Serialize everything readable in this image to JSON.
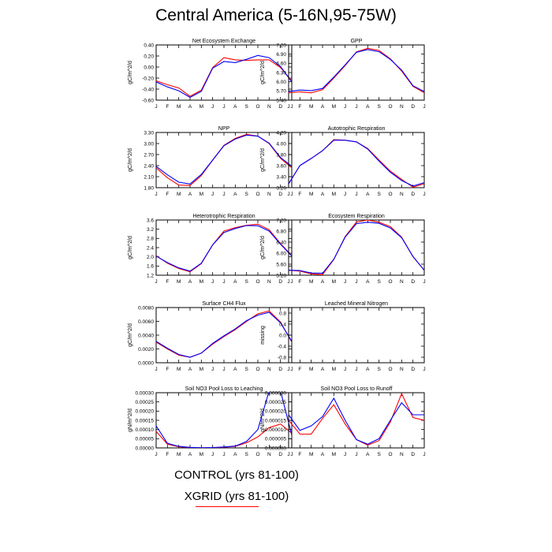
{
  "title": "Central America (5-16N,95-75W)",
  "legend": {
    "control_label": "CONTROL (yrs 81-100)",
    "xgrid_label": "XGRID (yrs 81-100)"
  },
  "colors": {
    "control": "#0000ff",
    "xgrid": "#ff0000"
  },
  "chart_data": [
    {
      "type": "line",
      "title": "Net Ecosystem Exchange",
      "ylabel": "gC/m^2/d",
      "ylim": [
        -0.6,
        0.4
      ],
      "yticks": [
        "0.40",
        "0.20",
        "0.00",
        "-0.20",
        "-0.40",
        "-0.60"
      ],
      "x": [
        "J",
        "F",
        "M",
        "A",
        "M",
        "J",
        "J",
        "A",
        "S",
        "O",
        "N",
        "D",
        "J"
      ],
      "series": [
        {
          "name": "CONTROL",
          "values": [
            -0.27,
            -0.36,
            -0.43,
            -0.55,
            -0.44,
            -0.02,
            0.1,
            0.08,
            0.14,
            0.21,
            0.17,
            0.01,
            -0.27
          ]
        },
        {
          "name": "XGRID",
          "values": [
            -0.25,
            -0.32,
            -0.38,
            -0.53,
            -0.42,
            -0.01,
            0.17,
            0.13,
            0.12,
            0.13,
            0.13,
            -0.01,
            -0.25
          ]
        }
      ]
    },
    {
      "type": "line",
      "title": "GPP",
      "ylabel": "gC/m^2/d",
      "ylim": [
        5.4,
        7.2
      ],
      "yticks": [
        "7.20",
        "6.90",
        "6.60",
        "6.30",
        "6.00",
        "5.70",
        "5.40"
      ],
      "x": [
        "J",
        "F",
        "M",
        "A",
        "M",
        "J",
        "J",
        "A",
        "S",
        "O",
        "N",
        "D",
        "J"
      ],
      "series": [
        {
          "name": "CONTROL",
          "values": [
            5.68,
            5.73,
            5.71,
            5.78,
            6.15,
            6.55,
            6.96,
            7.05,
            6.98,
            6.73,
            6.38,
            5.87,
            5.68
          ]
        },
        {
          "name": "XGRID",
          "values": [
            5.64,
            5.67,
            5.64,
            5.74,
            6.12,
            6.53,
            6.97,
            7.09,
            7.02,
            6.75,
            6.35,
            5.85,
            5.64
          ]
        }
      ]
    },
    {
      "type": "line",
      "title": "NPP",
      "ylabel": "gC/m^2/d",
      "ylim": [
        1.8,
        3.3
      ],
      "yticks": [
        "3.30",
        "3.00",
        "2.70",
        "2.40",
        "2.10",
        "1.80"
      ],
      "x": [
        "J",
        "F",
        "M",
        "A",
        "M",
        "J",
        "J",
        "A",
        "S",
        "O",
        "N",
        "D",
        "J"
      ],
      "series": [
        {
          "name": "CONTROL",
          "values": [
            2.38,
            2.15,
            1.95,
            1.9,
            2.16,
            2.55,
            2.94,
            3.12,
            3.23,
            3.2,
            3.01,
            2.62,
            2.38
          ]
        },
        {
          "name": "XGRID",
          "values": [
            2.34,
            2.07,
            1.87,
            1.86,
            2.13,
            2.55,
            2.95,
            3.14,
            3.25,
            3.2,
            3.0,
            2.6,
            2.34
          ]
        }
      ]
    },
    {
      "type": "line",
      "title": "Autotrophic Respiration",
      "ylabel": "gC/m^2/d",
      "ylim": [
        3.2,
        4.2
      ],
      "yticks": [
        "4.20",
        "4.00",
        "3.80",
        "3.60",
        "3.40",
        "3.20"
      ],
      "x": [
        "J",
        "F",
        "M",
        "A",
        "M",
        "J",
        "J",
        "A",
        "S",
        "O",
        "N",
        "D",
        "J"
      ],
      "series": [
        {
          "name": "CONTROL",
          "values": [
            3.27,
            3.6,
            3.73,
            3.87,
            4.06,
            4.06,
            4.03,
            3.9,
            3.68,
            3.48,
            3.33,
            3.23,
            3.29
          ]
        },
        {
          "name": "XGRID",
          "values": [
            3.27,
            3.6,
            3.73,
            3.87,
            4.07,
            4.06,
            4.03,
            3.91,
            3.7,
            3.5,
            3.35,
            3.21,
            3.27
          ]
        }
      ]
    },
    {
      "type": "line",
      "title": "Heterotrophic Respiration",
      "ylabel": "gC/m^2/d",
      "ylim": [
        1.2,
        3.6
      ],
      "yticks": [
        "3.6",
        "3.2",
        "2.8",
        "2.4",
        "2.0",
        "1.6",
        "1.2"
      ],
      "x": [
        "J",
        "F",
        "M",
        "A",
        "M",
        "J",
        "J",
        "A",
        "S",
        "O",
        "N",
        "D",
        "J"
      ],
      "series": [
        {
          "name": "CONTROL",
          "values": [
            2.03,
            1.75,
            1.52,
            1.38,
            1.72,
            2.52,
            3.06,
            3.23,
            3.36,
            3.35,
            3.12,
            2.55,
            2.03
          ]
        },
        {
          "name": "XGRID",
          "values": [
            2.05,
            1.72,
            1.49,
            1.35,
            1.7,
            2.52,
            3.12,
            3.27,
            3.37,
            3.42,
            3.18,
            2.58,
            2.05
          ]
        }
      ]
    },
    {
      "type": "line",
      "title": "Ecosystem Respiration",
      "ylabel": "gC/m^2/d",
      "ylim": [
        5.2,
        7.2
      ],
      "yticks": [
        "7.20",
        "6.80",
        "6.40",
        "6.00",
        "5.60",
        "5.20"
      ],
      "x": [
        "J",
        "F",
        "M",
        "A",
        "M",
        "J",
        "J",
        "A",
        "S",
        "O",
        "N",
        "D",
        "J"
      ],
      "series": [
        {
          "name": "CONTROL",
          "values": [
            5.38,
            5.37,
            5.28,
            5.27,
            5.78,
            6.58,
            7.07,
            7.12,
            7.08,
            6.91,
            6.56,
            5.88,
            5.38
          ]
        },
        {
          "name": "XGRID",
          "values": [
            5.38,
            5.35,
            5.25,
            5.22,
            5.77,
            6.6,
            7.13,
            7.2,
            7.12,
            6.96,
            6.58,
            5.87,
            5.38
          ]
        }
      ]
    },
    {
      "type": "line",
      "title": "Surface CH4 Flux",
      "ylabel": "gC/m^2/d",
      "ylim": [
        0,
        0.008
      ],
      "yticks": [
        "0.0080",
        "0.0060",
        "0.0040",
        "0.0020",
        "0.0000"
      ],
      "x": [
        "J",
        "F",
        "M",
        "A",
        "M",
        "J",
        "J",
        "A",
        "S",
        "O",
        "N",
        "D",
        "J"
      ],
      "series": [
        {
          "name": "CONTROL",
          "values": [
            0.0031,
            0.0021,
            0.0012,
            0.0008,
            0.0014,
            0.0028,
            0.0039,
            0.0049,
            0.0061,
            0.0069,
            0.0073,
            0.0058,
            0.0031
          ]
        },
        {
          "name": "XGRID",
          "values": [
            0.003,
            0.002,
            0.0011,
            0.0008,
            0.0014,
            0.0027,
            0.0038,
            0.0048,
            0.006,
            0.0071,
            0.0075,
            0.0059,
            0.003
          ]
        }
      ]
    },
    {
      "type": "line",
      "title": "Leached Mineral Nitrogen",
      "ylabel": "missing",
      "ylim": [
        -1.0,
        1.0
      ],
      "yticks": [
        "0.8",
        "0.4",
        "0.0",
        "-0.4",
        "-0.8"
      ],
      "ytick_values": [
        0.8,
        0.4,
        0.0,
        -0.4,
        -0.8
      ],
      "x": [
        "J",
        "F",
        "M",
        "A",
        "M",
        "J",
        "J",
        "A",
        "S",
        "O",
        "N",
        "D",
        "J"
      ],
      "series": []
    },
    {
      "type": "line",
      "title": "Soil NO3 Pool Loss to Leaching",
      "ylabel": "gN/m^2/d",
      "ylim": [
        0,
        0.0003
      ],
      "yticks": [
        "0.00030",
        "0.00025",
        "0.00020",
        "0.00015",
        "0.00010",
        "0.00005",
        "0.00000"
      ],
      "x": [
        "J",
        "F",
        "M",
        "A",
        "M",
        "J",
        "J",
        "A",
        "S",
        "O",
        "N",
        "D",
        "J"
      ],
      "series": [
        {
          "name": "CONTROL",
          "values": [
            0.00012,
            2.5e-05,
            8e-06,
            3e-06,
            1e-06,
            2e-06,
            5e-06,
            1e-05,
            3.5e-05,
            0.0001,
            0.00031,
            0.00031,
            7e-05
          ]
        },
        {
          "name": "XGRID",
          "values": [
            9e-05,
            2e-05,
            6e-06,
            2e-06,
            1e-06,
            1e-06,
            4e-06,
            8e-06,
            2.8e-05,
            6e-05,
            0.00011,
            0.00013,
            8e-05
          ]
        }
      ]
    },
    {
      "type": "line",
      "title": "Soil NO3 Pool Loss to Runoff",
      "ylabel": "gN/m^2/d",
      "ylim": [
        0,
        3e-05
      ],
      "yticks": [
        "0.000030",
        "0.000025",
        "0.000020",
        "0.000015",
        "0.000010",
        "0.000005",
        "0.000000"
      ],
      "x": [
        "J",
        "F",
        "M",
        "A",
        "M",
        "J",
        "J",
        "A",
        "S",
        "O",
        "N",
        "D",
        "J"
      ],
      "series": [
        {
          "name": "CONTROL",
          "values": [
            1.8e-05,
            9.5e-06,
            1.2e-05,
            1.7e-05,
            2.7e-05,
            1.5e-05,
            4.5e-06,
            2e-06,
            5e-06,
            1.5e-05,
            2.45e-05,
            1.8e-05,
            1.8e-05
          ]
        },
        {
          "name": "XGRID",
          "values": [
            1.5e-05,
            7.5e-06,
            7.5e-06,
            1.6e-05,
            2.35e-05,
            1.3e-05,
            4.5e-06,
            1.5e-06,
            4e-06,
            1.4e-05,
            2.95e-05,
            1.65e-05,
            1.5e-05
          ]
        }
      ]
    }
  ]
}
